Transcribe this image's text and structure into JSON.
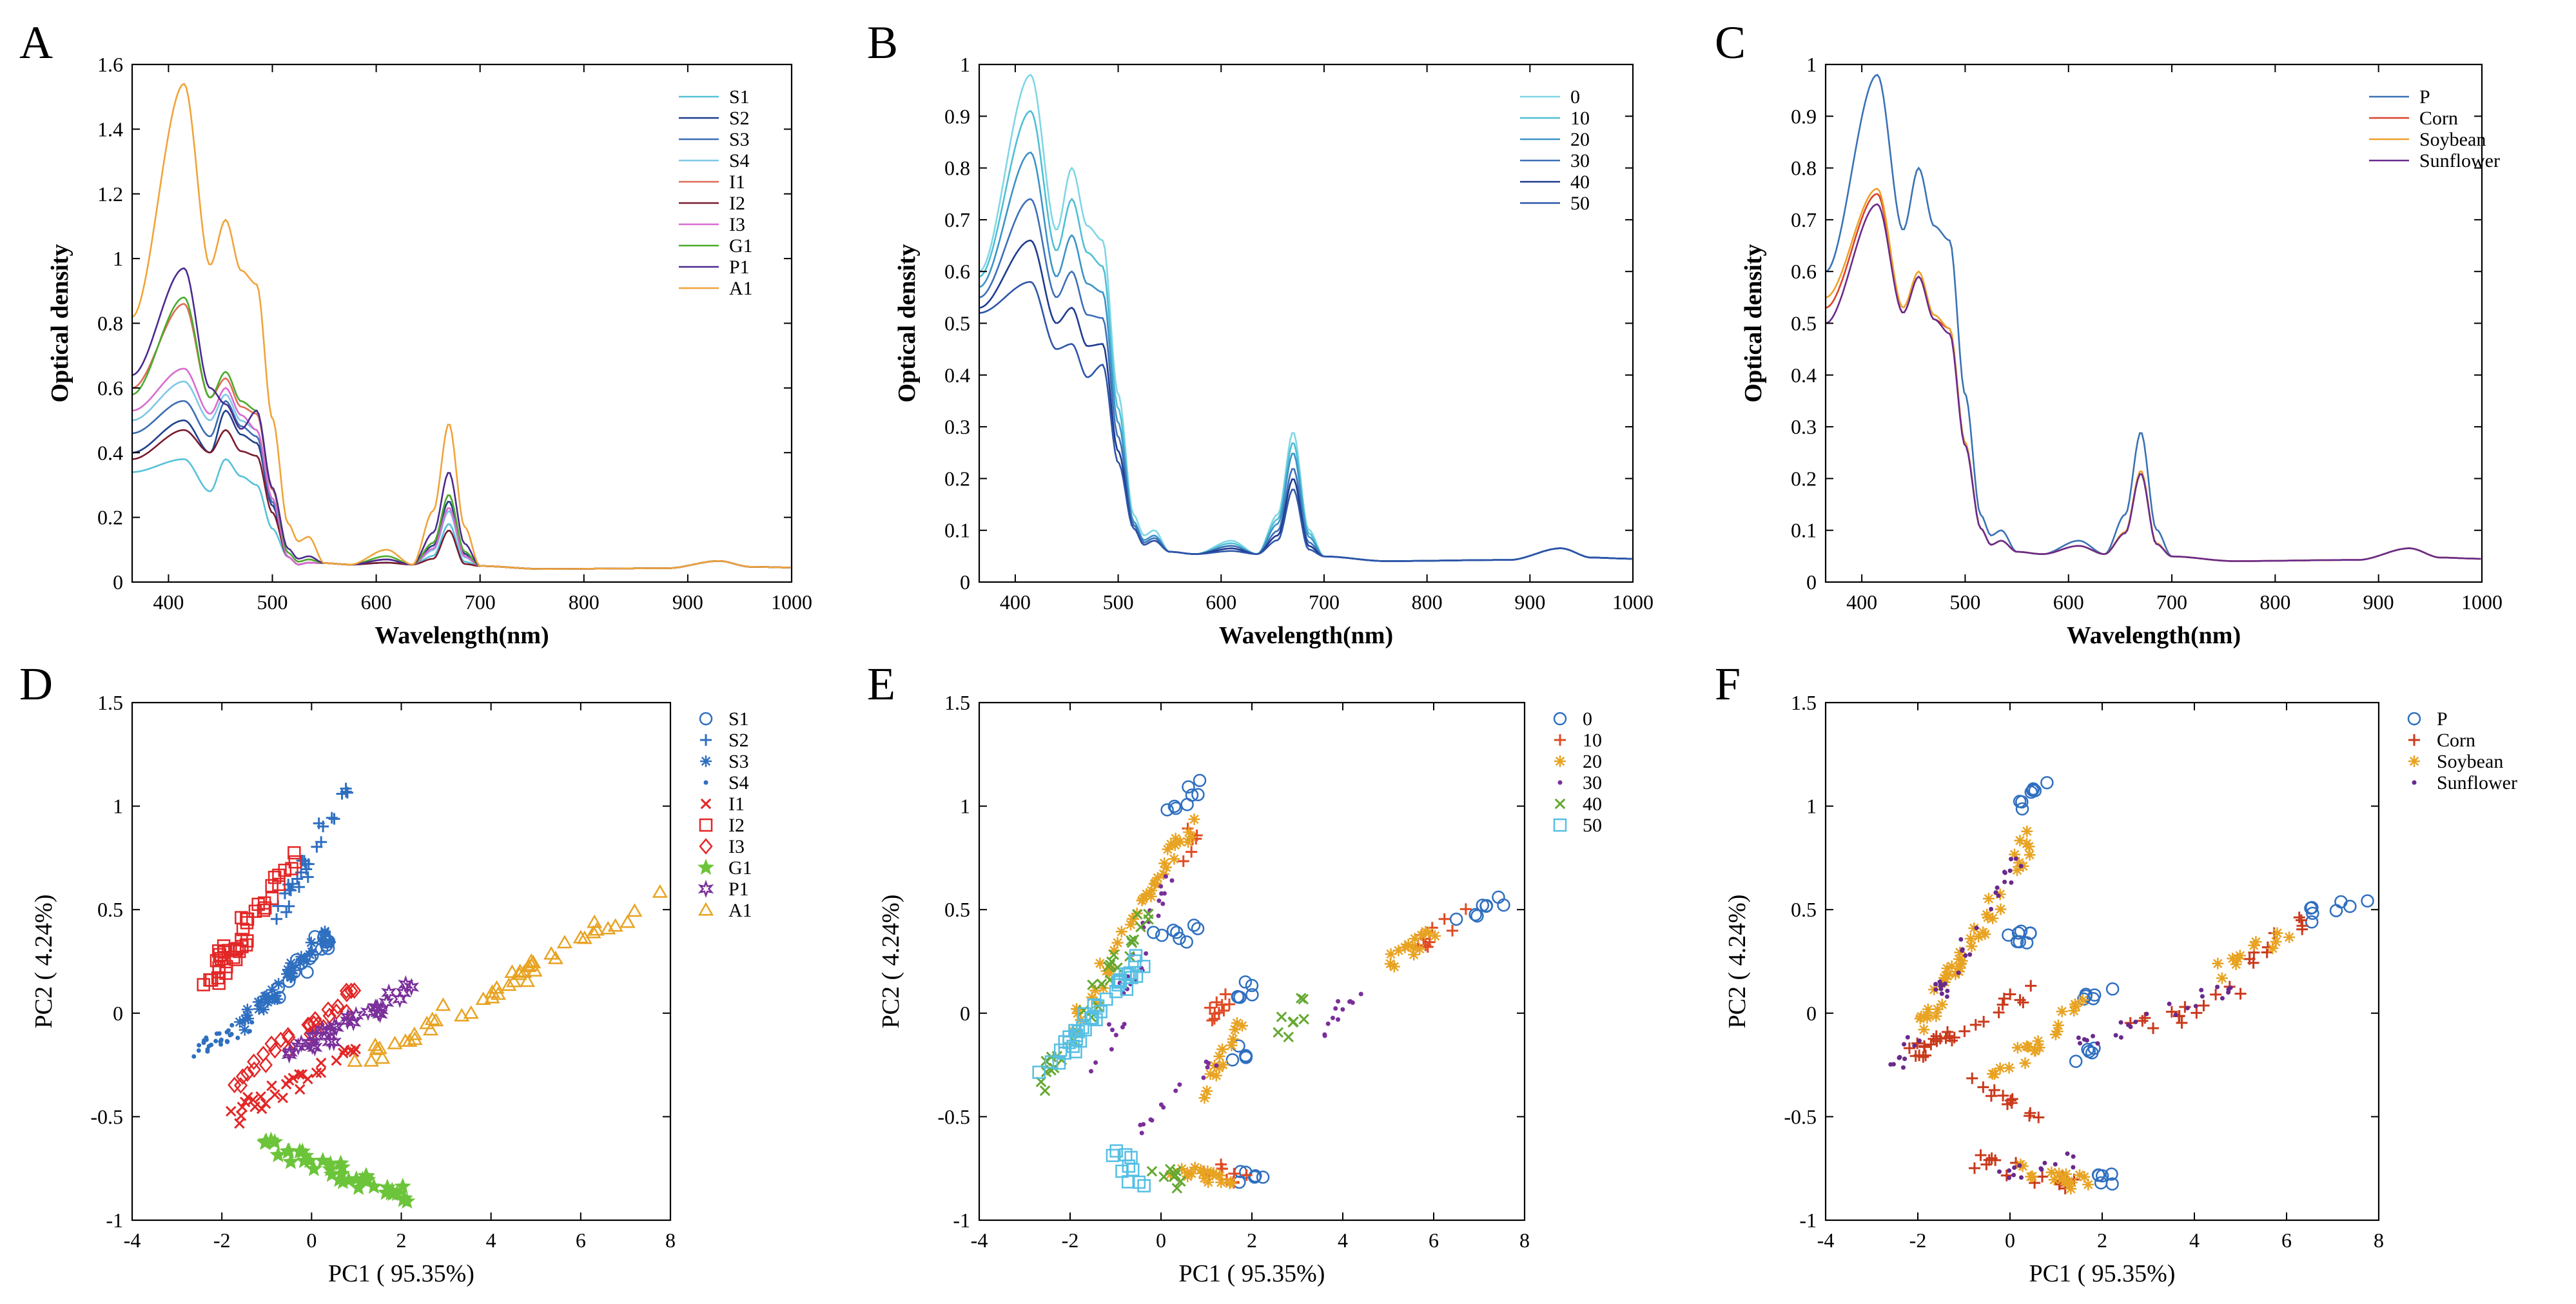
{
  "figure": {
    "description_letters": [
      "A",
      "B",
      "C",
      "D",
      "E",
      "F"
    ]
  },
  "chart_data": [
    {
      "panel": "A",
      "type": "line",
      "xlabel": "Wavelength(nm)",
      "ylabel": "Optical density",
      "xlim": [
        365,
        1000
      ],
      "ylim": [
        0,
        1.6
      ],
      "xticks": [
        400,
        500,
        600,
        700,
        800,
        900,
        1000
      ],
      "yticks": [
        0,
        0.2,
        0.4,
        0.6,
        0.8,
        1,
        1.2,
        1.4,
        1.6
      ],
      "ytick_labels": [
        "0",
        "0.2",
        "0.4",
        "0.6",
        "0.8",
        "1",
        "1.2",
        "1.4",
        "1.6"
      ],
      "series": [
        {
          "name": "S1",
          "color": "#56c1d8",
          "profile": {
            "v365": 0.34,
            "p415": 0.38,
            "v440": 0.28,
            "p455": 0.38,
            "p485": 0.3,
            "p535": 0.06,
            "p610": 0.06,
            "p670": 0.18,
            "tail": 0.045
          }
        },
        {
          "name": "S2",
          "color": "#1f3f8c",
          "profile": {
            "v365": 0.4,
            "p415": 0.5,
            "v440": 0.4,
            "p455": 0.53,
            "p485": 0.43,
            "p535": 0.06,
            "p610": 0.06,
            "p670": 0.25,
            "tail": 0.045
          }
        },
        {
          "name": "S3",
          "color": "#3a6db3",
          "profile": {
            "v365": 0.46,
            "p415": 0.56,
            "v440": 0.45,
            "p455": 0.56,
            "p485": 0.45,
            "p535": 0.06,
            "p610": 0.07,
            "p670": 0.22,
            "tail": 0.045
          }
        },
        {
          "name": "S4",
          "color": "#7ec8e6",
          "profile": {
            "v365": 0.5,
            "p415": 0.62,
            "v440": 0.5,
            "p455": 0.58,
            "p485": 0.47,
            "p535": 0.06,
            "p610": 0.07,
            "p670": 0.22,
            "tail": 0.045
          }
        },
        {
          "name": "I1",
          "color": "#e06b56",
          "profile": {
            "v365": 0.6,
            "p415": 0.86,
            "v440": 0.57,
            "p455": 0.63,
            "p485": 0.52,
            "p535": 0.07,
            "p610": 0.07,
            "p670": 0.27,
            "tail": 0.045
          }
        },
        {
          "name": "I2",
          "color": "#7a1a2e",
          "profile": {
            "v365": 0.38,
            "p415": 0.47,
            "v440": 0.4,
            "p455": 0.47,
            "p485": 0.39,
            "p535": 0.06,
            "p610": 0.06,
            "p670": 0.16,
            "tail": 0.045
          }
        },
        {
          "name": "I3",
          "color": "#d96bd0",
          "profile": {
            "v365": 0.53,
            "p415": 0.66,
            "v440": 0.52,
            "p455": 0.6,
            "p485": 0.47,
            "p535": 0.06,
            "p610": 0.07,
            "p670": 0.23,
            "tail": 0.045
          }
        },
        {
          "name": "G1",
          "color": "#4aab2c",
          "profile": {
            "v365": 0.58,
            "p415": 0.88,
            "v440": 0.57,
            "p455": 0.65,
            "p485": 0.53,
            "p535": 0.07,
            "p610": 0.08,
            "p670": 0.27,
            "tail": 0.045
          }
        },
        {
          "name": "P1",
          "color": "#4b2a8f",
          "profile": {
            "v365": 0.64,
            "p415": 0.97,
            "v440": 0.6,
            "p455": 0.55,
            "p485": 0.53,
            "p535": 0.08,
            "p610": 0.07,
            "p670": 0.34,
            "tail": 0.045
          }
        },
        {
          "name": "A1",
          "color": "#f0a43a",
          "profile": {
            "v365": 0.82,
            "p415": 1.54,
            "v440": 0.98,
            "p455": 1.12,
            "p485": 0.92,
            "p535": 0.14,
            "p610": 0.1,
            "p670": 0.49,
            "tail": 0.045
          }
        }
      ]
    },
    {
      "panel": "B",
      "type": "line",
      "xlabel": "Wavelength(nm)",
      "ylabel": "Optical density",
      "xlim": [
        365,
        1000
      ],
      "ylim": [
        0,
        1
      ],
      "xticks": [
        400,
        500,
        600,
        700,
        800,
        900,
        1000
      ],
      "yticks": [
        0,
        0.1,
        0.2,
        0.3,
        0.4,
        0.5,
        0.6,
        0.7,
        0.8,
        0.9,
        1
      ],
      "ytick_labels": [
        "0",
        "0.1",
        "0.2",
        "0.3",
        "0.4",
        "0.5",
        "0.6",
        "0.7",
        "0.8",
        "0.9",
        "1"
      ],
      "series": [
        {
          "name": "0",
          "color": "#7fd6e6",
          "profile": {
            "v365": 0.6,
            "p415": 0.98,
            "v440": 0.68,
            "p455": 0.8,
            "p485": 0.66,
            "p535": 0.1,
            "p610": 0.08,
            "p670": 0.29,
            "tail": 0.045
          }
        },
        {
          "name": "10",
          "color": "#4fbfd3",
          "profile": {
            "v365": 0.59,
            "p415": 0.91,
            "v440": 0.64,
            "p455": 0.74,
            "p485": 0.61,
            "p535": 0.09,
            "p610": 0.075,
            "p670": 0.27,
            "tail": 0.045
          }
        },
        {
          "name": "20",
          "color": "#3c93c8",
          "profile": {
            "v365": 0.57,
            "p415": 0.83,
            "v440": 0.59,
            "p455": 0.67,
            "p485": 0.56,
            "p535": 0.09,
            "p610": 0.07,
            "p670": 0.25,
            "tail": 0.045
          }
        },
        {
          "name": "30",
          "color": "#3d6fb6",
          "profile": {
            "v365": 0.55,
            "p415": 0.74,
            "v440": 0.55,
            "p455": 0.6,
            "p485": 0.51,
            "p535": 0.085,
            "p610": 0.07,
            "p670": 0.22,
            "tail": 0.045
          }
        },
        {
          "name": "40",
          "color": "#1f3b8f",
          "profile": {
            "v365": 0.53,
            "p415": 0.66,
            "v440": 0.5,
            "p455": 0.53,
            "p485": 0.46,
            "p535": 0.08,
            "p610": 0.065,
            "p670": 0.2,
            "tail": 0.045
          }
        },
        {
          "name": "50",
          "color": "#2d55a8",
          "profile": {
            "v365": 0.52,
            "p415": 0.58,
            "v440": 0.45,
            "p455": 0.46,
            "p485": 0.42,
            "p535": 0.08,
            "p610": 0.06,
            "p670": 0.18,
            "tail": 0.045
          }
        }
      ]
    },
    {
      "panel": "C",
      "type": "line",
      "xlabel": "Wavelength(nm)",
      "ylabel": "Optical density",
      "xlim": [
        365,
        1000
      ],
      "ylim": [
        0,
        1
      ],
      "xticks": [
        400,
        500,
        600,
        700,
        800,
        900,
        1000
      ],
      "yticks": [
        0,
        0.1,
        0.2,
        0.3,
        0.4,
        0.5,
        0.6,
        0.7,
        0.8,
        0.9,
        1
      ],
      "ytick_labels": [
        "0",
        "0.1",
        "0.2",
        "0.3",
        "0.4",
        "0.5",
        "0.6",
        "0.7",
        "0.8",
        "0.9",
        "1"
      ],
      "series": [
        {
          "name": "P",
          "color": "#3a72b5",
          "profile": {
            "v365": 0.6,
            "p415": 0.98,
            "v440": 0.68,
            "p455": 0.8,
            "p485": 0.66,
            "p535": 0.1,
            "p610": 0.08,
            "p670": 0.29,
            "tail": 0.045
          }
        },
        {
          "name": "Corn",
          "color": "#d9432b",
          "profile": {
            "v365": 0.53,
            "p415": 0.75,
            "v440": 0.52,
            "p455": 0.59,
            "p485": 0.49,
            "p535": 0.08,
            "p610": 0.07,
            "p670": 0.215,
            "tail": 0.045
          }
        },
        {
          "name": "Soybean",
          "color": "#efa12a",
          "profile": {
            "v365": 0.55,
            "p415": 0.76,
            "v440": 0.53,
            "p455": 0.6,
            "p485": 0.49,
            "p535": 0.08,
            "p610": 0.07,
            "p670": 0.215,
            "tail": 0.045
          }
        },
        {
          "name": "Sunflower",
          "color": "#6a2a8c",
          "profile": {
            "v365": 0.5,
            "p415": 0.73,
            "v440": 0.52,
            "p455": 0.59,
            "p485": 0.48,
            "p535": 0.08,
            "p610": 0.07,
            "p670": 0.21,
            "tail": 0.045
          }
        }
      ]
    },
    {
      "panel": "D",
      "type": "scatter",
      "xlabel": "PC1 ( 95.35%)",
      "ylabel": "PC2 ( 4.24%)",
      "xlim": [
        -4,
        8
      ],
      "ylim": [
        -1,
        1.5
      ],
      "xticks": [
        -4,
        -2,
        0,
        2,
        4,
        6,
        8
      ],
      "yticks": [
        -1,
        -0.5,
        0,
        0.5,
        1,
        1.5
      ],
      "ytick_labels": [
        "-1",
        "-0.5",
        "0",
        "0.5",
        "1",
        "1.5"
      ],
      "series": [
        {
          "name": "S1",
          "marker": "circle",
          "color": "#2f6fc0",
          "clusters": [
            [
              -0.8,
              0.1,
              0.3,
              0.35,
              12
            ],
            [
              0.4,
              0.37,
              -0.1,
              0.3,
              8
            ]
          ]
        },
        {
          "name": "S2",
          "marker": "plus",
          "color": "#2f6fc0",
          "clusters": [
            [
              -0.8,
              0.45,
              0.8,
              1.12,
              28
            ]
          ]
        },
        {
          "name": "S3",
          "marker": "star",
          "color": "#2f6fc0",
          "clusters": [
            [
              -1.6,
              -0.05,
              0.4,
              0.38,
              40
            ]
          ]
        },
        {
          "name": "S4",
          "marker": "dot",
          "color": "#2f6fc0",
          "clusters": [
            [
              -2.6,
              -0.2,
              -1.4,
              -0.05,
              30
            ]
          ]
        },
        {
          "name": "I1",
          "marker": "x",
          "color": "#e32626",
          "clusters": [
            [
              -1.8,
              -0.5,
              1.2,
              -0.15,
              30
            ]
          ]
        },
        {
          "name": "I2",
          "marker": "square",
          "color": "#e32626",
          "clusters": [
            [
              -2.4,
              0.1,
              -0.4,
              0.75,
              45
            ]
          ]
        },
        {
          "name": "I3",
          "marker": "diamond",
          "color": "#e32626",
          "clusters": [
            [
              -1.8,
              -0.35,
              1.0,
              0.1,
              30
            ]
          ]
        },
        {
          "name": "G1",
          "marker": "pentagram",
          "color": "#6cc43a",
          "clusters": [
            [
              -1.1,
              -0.63,
              2.2,
              -0.9,
              45
            ]
          ]
        },
        {
          "name": "P1",
          "marker": "hexagram",
          "color": "#7a2f9a",
          "clusters": [
            [
              -0.5,
              -0.2,
              2.2,
              0.12,
              32
            ]
          ]
        },
        {
          "name": "A1",
          "marker": "triangle",
          "color": "#e8a322",
          "clusters": [
            [
              1.0,
              -0.25,
              7.8,
              0.57,
              48
            ]
          ]
        }
      ]
    },
    {
      "panel": "E",
      "type": "scatter",
      "xlabel": "PC1 ( 95.35%)",
      "ylabel": "PC2 ( 4.24%)",
      "xlim": [
        -4,
        8
      ],
      "ylim": [
        -1,
        1.5
      ],
      "xticks": [
        -4,
        -2,
        0,
        2,
        4,
        6,
        8
      ],
      "yticks": [
        -1,
        -0.5,
        0,
        0.5,
        1,
        1.5
      ],
      "ytick_labels": [
        "-1",
        "-0.5",
        "0",
        "0.5",
        "1",
        "1.5"
      ],
      "series": [
        {
          "name": "0",
          "marker": "circle",
          "color": "#2f6fc0",
          "clusters": [
            [
              0.3,
              1.0,
              0.8,
              1.12,
              8
            ],
            [
              0.0,
              0.35,
              0.7,
              0.39,
              8
            ],
            [
              1.5,
              0.1,
              2.1,
              0.13,
              6
            ],
            [
              1.6,
              -0.2,
              2.0,
              -0.19,
              5
            ],
            [
              1.8,
              -0.78,
              2.2,
              -0.8,
              6
            ],
            [
              6.5,
              0.47,
              7.8,
              0.57,
              8
            ]
          ]
        },
        {
          "name": "10",
          "marker": "plus",
          "color": "#e04a24",
          "clusters": [
            [
              5.5,
              0.32,
              6.6,
              0.47,
              10
            ],
            [
              0.8,
              -0.75,
              2.0,
              -0.8,
              10
            ],
            [
              1.0,
              -0.05,
              1.8,
              0.1,
              10
            ],
            [
              0.5,
              0.75,
              0.8,
              0.9,
              6
            ]
          ]
        },
        {
          "name": "20",
          "marker": "star",
          "color": "#e8a322",
          "clusters": [
            [
              -2.0,
              -0.1,
              0.6,
              0.9,
              40
            ],
            [
              5.0,
              0.25,
              6.0,
              0.4,
              14
            ],
            [
              0.3,
              -0.75,
              1.5,
              -0.82,
              18
            ],
            [
              1.0,
              -0.4,
              2.0,
              0.1,
              14
            ]
          ]
        },
        {
          "name": "30",
          "marker": "dot",
          "color": "#7a2f9a",
          "clusters": [
            [
              -1.4,
              -0.3,
              0.2,
              0.7,
              30
            ],
            [
              3.5,
              -0.1,
              4.5,
              0.15,
              12
            ],
            [
              -0.4,
              -0.55,
              1.2,
              -0.25,
              14
            ]
          ]
        },
        {
          "name": "40",
          "marker": "x",
          "color": "#64a832",
          "clusters": [
            [
              -2.8,
              -0.4,
              -0.2,
              0.5,
              30
            ],
            [
              2.6,
              -0.1,
              3.2,
              0.05,
              8
            ],
            [
              -0.5,
              -0.7,
              0.6,
              -0.85,
              8
            ]
          ]
        },
        {
          "name": "50",
          "marker": "square",
          "color": "#56bfe3",
          "clusters": [
            [
              -2.8,
              -0.35,
              -0.5,
              0.25,
              40
            ],
            [
              -1.2,
              -0.6,
              -0.5,
              -0.85,
              10
            ]
          ]
        }
      ]
    },
    {
      "panel": "F",
      "type": "scatter",
      "xlabel": "PC1 ( 95.35%)",
      "ylabel": "PC2 ( 4.24%)",
      "xlim": [
        -4,
        8
      ],
      "ylim": [
        -1,
        1.5
      ],
      "xticks": [
        -4,
        -2,
        0,
        2,
        4,
        6,
        8
      ],
      "yticks": [
        -1,
        -0.5,
        0,
        0.5,
        1,
        1.5
      ],
      "ytick_labels": [
        "-1",
        "-0.5",
        "0",
        "0.5",
        "1",
        "1.5"
      ],
      "series": [
        {
          "name": "P",
          "marker": "circle",
          "color": "#2f6fc0",
          "clusters": [
            [
              0.3,
              1.0,
              0.8,
              1.12,
              8
            ],
            [
              0.0,
              0.35,
              0.7,
              0.39,
              8
            ],
            [
              1.5,
              0.1,
              2.1,
              0.13,
              6
            ],
            [
              1.6,
              -0.2,
              2.0,
              -0.19,
              5
            ],
            [
              1.8,
              -0.78,
              2.2,
              -0.8,
              6
            ],
            [
              6.5,
              0.47,
              7.8,
              0.57,
              8
            ]
          ]
        },
        {
          "name": "Corn",
          "marker": "plus",
          "color": "#c93a1c",
          "clusters": [
            [
              -2.2,
              -0.2,
              0.4,
              0.1,
              30
            ],
            [
              2.5,
              -0.1,
              5.0,
              0.1,
              14
            ],
            [
              5.0,
              0.25,
              6.5,
              0.45,
              10
            ],
            [
              -1.0,
              -0.7,
              1.8,
              -0.85,
              16
            ],
            [
              -0.8,
              -0.3,
              0.6,
              -0.5,
              12
            ]
          ]
        },
        {
          "name": "Soybean",
          "marker": "star",
          "color": "#e8a322",
          "clusters": [
            [
              -2.0,
              -0.1,
              0.6,
              0.9,
              45
            ],
            [
              4.5,
              0.2,
              6.0,
              0.4,
              12
            ],
            [
              0.2,
              -0.75,
              1.6,
              -0.82,
              16
            ],
            [
              -0.5,
              -0.35,
              1.8,
              0.1,
              20
            ]
          ]
        },
        {
          "name": "Sunflower",
          "marker": "dot",
          "color": "#6a2a8c",
          "clusters": [
            [
              -2.6,
              -0.3,
              0.2,
              0.75,
              40
            ],
            [
              1.5,
              -0.15,
              5.0,
              0.15,
              24
            ],
            [
              -0.8,
              -0.8,
              1.6,
              -0.7,
              14
            ]
          ]
        }
      ]
    }
  ]
}
